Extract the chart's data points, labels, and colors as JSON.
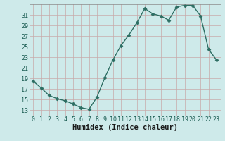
{
  "x": [
    0,
    1,
    2,
    3,
    4,
    5,
    6,
    7,
    8,
    9,
    10,
    11,
    12,
    13,
    14,
    15,
    16,
    17,
    18,
    19,
    20,
    21,
    22,
    23
  ],
  "y": [
    18.5,
    17.2,
    15.8,
    15.2,
    14.8,
    14.2,
    13.5,
    13.2,
    15.5,
    19.2,
    22.5,
    25.2,
    27.2,
    29.5,
    32.2,
    31.2,
    30.8,
    30.0,
    32.5,
    32.8,
    32.8,
    30.8,
    24.5,
    22.5
  ],
  "title": "",
  "xlabel": "Humidex (Indice chaleur)",
  "ylabel": "",
  "line_color": "#2d6e63",
  "marker": "D",
  "marker_size": 2.5,
  "bg_color": "#ceeaea",
  "grid_color": "#b8d8d8",
  "xlim": [
    -0.5,
    23.5
  ],
  "ylim": [
    12,
    33
  ],
  "yticks": [
    13,
    15,
    17,
    19,
    21,
    23,
    25,
    27,
    29,
    31
  ],
  "xticks": [
    0,
    1,
    2,
    3,
    4,
    5,
    6,
    7,
    8,
    9,
    10,
    11,
    12,
    13,
    14,
    15,
    16,
    17,
    18,
    19,
    20,
    21,
    22,
    23
  ],
  "tick_labelsize": 6,
  "xlabel_fontsize": 7.5,
  "linewidth": 1.0
}
